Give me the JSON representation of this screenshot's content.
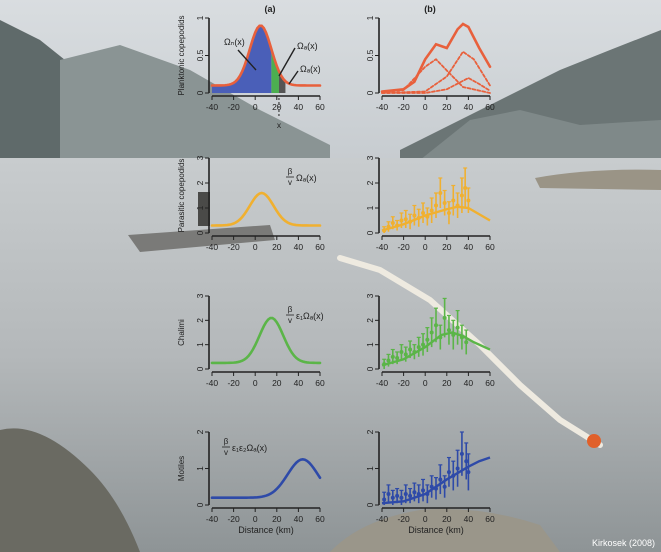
{
  "panel_labels": [
    "(a)",
    "(b)"
  ],
  "credit": "Kirkosek (2008)",
  "colors": {
    "red": "#e8603c",
    "yellow": "#f0b030",
    "green": "#5bb548",
    "blue": "#2e4aa8",
    "shade_blue": "#4a5fb8",
    "shade_green": "#4caf50",
    "shade_gray": "#555555"
  },
  "background": "photo of a fjord with a small boat, floating sea-lice sampling line and buoy; rendered as a painted backdrop",
  "chart_data": [
    {
      "id": "a-planktonic",
      "type": "area",
      "ylabel": "Planktonic copepodids",
      "xlim": [
        -40,
        60
      ],
      "ylim": [
        0,
        1.0
      ],
      "xticks": [
        -40,
        -20,
        0,
        20,
        40,
        60
      ],
      "yticks": [
        0,
        0.5,
        1.0
      ],
      "yticklabels": [
        "0",
        "0.5",
        "1"
      ],
      "color": "#e8603c",
      "series": [
        {
          "kind": "gaussian",
          "baseline": 0.1,
          "amp": 0.8,
          "mu": 5,
          "sigma": 10
        }
      ],
      "shaded_regions": [
        {
          "label": "Ωₙ(x)",
          "from": -40,
          "to": 15,
          "color": "#4a5fb8"
        },
        {
          "label": "Ωₐ(x)",
          "from": 15,
          "to": 22,
          "color": "#4caf50"
        },
        {
          "label": "Ωₐ(x)",
          "from": 22,
          "to": 28,
          "color": "#555555"
        }
      ],
      "annotations": [
        "Ωₙ(x)",
        "Ωₐ(x)",
        "Ωₐ(x)",
        "x"
      ]
    },
    {
      "id": "b-planktonic",
      "type": "line",
      "ylabel": "",
      "xlim": [
        -40,
        60
      ],
      "ylim": [
        0,
        1.0
      ],
      "xticks": [
        -40,
        -20,
        0,
        20,
        40,
        60
      ],
      "yticks": [
        0,
        0.5,
        1.0
      ],
      "yticklabels": [
        "0",
        "0.5",
        "1"
      ],
      "color": "#e8603c",
      "series": [
        {
          "name": "",
          "style": "solid",
          "points": [
            [
              -40,
              0.02
            ],
            [
              -20,
              0.05
            ],
            [
              -10,
              0.15
            ],
            [
              0,
              0.45
            ],
            [
              10,
              0.65
            ],
            [
              20,
              0.6
            ],
            [
              30,
              0.85
            ],
            [
              35,
              0.92
            ],
            [
              40,
              0.88
            ],
            [
              50,
              0.6
            ],
            [
              60,
              0.35
            ]
          ]
        },
        {
          "name": "",
          "style": "dashed",
          "points": [
            [
              -40,
              0.01
            ],
            [
              -20,
              0.04
            ],
            [
              0,
              0.35
            ],
            [
              10,
              0.45
            ],
            [
              20,
              0.3
            ],
            [
              35,
              0.08
            ],
            [
              60,
              0.0
            ]
          ]
        },
        {
          "name": "",
          "style": "dashed",
          "points": [
            [
              -40,
              0.0
            ],
            [
              0,
              0.02
            ],
            [
              20,
              0.22
            ],
            [
              35,
              0.55
            ],
            [
              45,
              0.45
            ],
            [
              60,
              0.1
            ]
          ]
        },
        {
          "name": "",
          "style": "dashed",
          "points": [
            [
              -40,
              0.0
            ],
            [
              0,
              0.0
            ],
            [
              20,
              0.05
            ],
            [
              40,
              0.2
            ],
            [
              50,
              0.12
            ],
            [
              60,
              0.03
            ]
          ]
        }
      ]
    },
    {
      "id": "a-parasitic",
      "type": "line",
      "ylabel": "Parasitic copepodids",
      "xlim": [
        -40,
        60
      ],
      "ylim": [
        0,
        3
      ],
      "xticks": [
        -40,
        -20,
        0,
        20,
        40,
        60
      ],
      "yticks": [
        0,
        1,
        2,
        3
      ],
      "yticklabels": [
        "0",
        "1",
        "2",
        "3"
      ],
      "color": "#f0b030",
      "series": [
        {
          "kind": "gaussian",
          "baseline": 0.3,
          "amp": 1.3,
          "mu": 6,
          "sigma": 11
        }
      ],
      "label_fraction": {
        "numer": "β",
        "denom": "v",
        "tail": "Ωₐ(x)"
      }
    },
    {
      "id": "b-parasitic",
      "type": "scatter",
      "ylabel": "",
      "xlim": [
        -40,
        60
      ],
      "ylim": [
        0,
        3
      ],
      "xticks": [
        -40,
        -20,
        0,
        20,
        40,
        60
      ],
      "yticks": [
        0,
        1,
        2,
        3
      ],
      "yticklabels": [
        "0",
        "1",
        "2",
        "3"
      ],
      "color": "#f0b030",
      "fit": [
        [
          -40,
          0.1
        ],
        [
          -20,
          0.35
        ],
        [
          0,
          0.7
        ],
        [
          20,
          0.95
        ],
        [
          30,
          1.05
        ],
        [
          40,
          1.0
        ],
        [
          50,
          0.75
        ],
        [
          60,
          0.5
        ]
      ],
      "points": [
        [
          -38,
          0.1,
          0.15
        ],
        [
          -34,
          0.25,
          0.2
        ],
        [
          -30,
          0.4,
          0.25
        ],
        [
          -26,
          0.3,
          0.2
        ],
        [
          -22,
          0.5,
          0.3
        ],
        [
          -18,
          0.55,
          0.35
        ],
        [
          -14,
          0.45,
          0.3
        ],
        [
          -10,
          0.7,
          0.4
        ],
        [
          -6,
          0.6,
          0.35
        ],
        [
          -2,
          0.8,
          0.4
        ],
        [
          2,
          0.65,
          0.35
        ],
        [
          6,
          0.9,
          0.5
        ],
        [
          10,
          1.1,
          0.5
        ],
        [
          14,
          1.6,
          0.6
        ],
        [
          18,
          1.2,
          0.5
        ],
        [
          22,
          0.8,
          0.45
        ],
        [
          26,
          1.3,
          0.6
        ],
        [
          30,
          1.1,
          0.5
        ],
        [
          34,
          1.5,
          0.7
        ],
        [
          37,
          1.8,
          0.8
        ],
        [
          40,
          1.3,
          0.5
        ]
      ]
    },
    {
      "id": "a-chalimi",
      "type": "line",
      "ylabel": "Chalimi",
      "xlim": [
        -40,
        60
      ],
      "ylim": [
        0,
        3
      ],
      "xticks": [
        -40,
        -20,
        0,
        20,
        40,
        60
      ],
      "yticks": [
        0,
        1,
        2,
        3
      ],
      "yticklabels": [
        "0",
        "1",
        "2",
        "3"
      ],
      "color": "#5bb548",
      "series": [
        {
          "kind": "gaussian",
          "baseline": 0.25,
          "amp": 1.85,
          "mu": 15,
          "sigma": 11
        }
      ],
      "label_fraction": {
        "numer": "β",
        "denom": "v",
        "tail": "ε₁Ωₐ(x)"
      }
    },
    {
      "id": "b-chalimi",
      "type": "scatter",
      "ylabel": "",
      "xlim": [
        -40,
        60
      ],
      "ylim": [
        0,
        3
      ],
      "xticks": [
        -40,
        -20,
        0,
        20,
        40,
        60
      ],
      "yticks": [
        0,
        1,
        2,
        3
      ],
      "yticklabels": [
        "0",
        "1",
        "2",
        "3"
      ],
      "color": "#5bb548",
      "fit": [
        [
          -40,
          0.15
        ],
        [
          -20,
          0.4
        ],
        [
          0,
          0.9
        ],
        [
          15,
          1.4
        ],
        [
          25,
          1.5
        ],
        [
          35,
          1.35
        ],
        [
          45,
          1.1
        ],
        [
          60,
          0.8
        ]
      ],
      "points": [
        [
          -38,
          0.2,
          0.2
        ],
        [
          -34,
          0.35,
          0.25
        ],
        [
          -30,
          0.5,
          0.3
        ],
        [
          -26,
          0.45,
          0.25
        ],
        [
          -22,
          0.7,
          0.3
        ],
        [
          -18,
          0.6,
          0.3
        ],
        [
          -14,
          0.8,
          0.35
        ],
        [
          -10,
          0.7,
          0.3
        ],
        [
          -6,
          0.9,
          0.4
        ],
        [
          -2,
          1.0,
          0.45
        ],
        [
          2,
          1.2,
          0.5
        ],
        [
          6,
          1.5,
          0.6
        ],
        [
          10,
          1.8,
          0.7
        ],
        [
          14,
          1.3,
          0.5
        ],
        [
          18,
          2.1,
          0.8
        ],
        [
          22,
          1.6,
          0.6
        ],
        [
          26,
          1.4,
          0.6
        ],
        [
          30,
          1.7,
          0.7
        ],
        [
          34,
          1.3,
          0.5
        ],
        [
          38,
          1.1,
          0.5
        ]
      ]
    },
    {
      "id": "a-motiles",
      "type": "line",
      "ylabel": "Motiles",
      "xlabel": "Distance (km)",
      "xlim": [
        -40,
        60
      ],
      "ylim": [
        0,
        2
      ],
      "xticks": [
        -40,
        -20,
        0,
        20,
        40,
        60
      ],
      "yticks": [
        0,
        1,
        2
      ],
      "yticklabels": [
        "0",
        "1",
        "2"
      ],
      "color": "#2e4aa8",
      "series": [
        {
          "kind": "gaussian",
          "baseline": 0.2,
          "amp": 1.05,
          "mu": 44,
          "sigma": 14
        }
      ],
      "label_fraction": {
        "numer": "β",
        "denom": "v",
        "tail": "ε₁ε₂Ωₐ(x)"
      }
    },
    {
      "id": "b-motiles",
      "type": "scatter",
      "ylabel": "",
      "xlabel": "Distance (km)",
      "xlim": [
        -40,
        60
      ],
      "ylim": [
        0,
        2
      ],
      "xticks": [
        -40,
        -20,
        0,
        20,
        40,
        60
      ],
      "yticks": [
        0,
        1,
        2
      ],
      "yticklabels": [
        "0",
        "1",
        "2"
      ],
      "color": "#2e4aa8",
      "fit": [
        [
          -40,
          0.05
        ],
        [
          -20,
          0.1
        ],
        [
          0,
          0.3
        ],
        [
          20,
          0.7
        ],
        [
          40,
          1.05
        ],
        [
          50,
          1.2
        ],
        [
          60,
          1.3
        ]
      ],
      "points": [
        [
          -38,
          0.15,
          0.2
        ],
        [
          -34,
          0.3,
          0.25
        ],
        [
          -30,
          0.2,
          0.2
        ],
        [
          -26,
          0.25,
          0.2
        ],
        [
          -22,
          0.2,
          0.2
        ],
        [
          -18,
          0.3,
          0.25
        ],
        [
          -14,
          0.25,
          0.2
        ],
        [
          -10,
          0.35,
          0.25
        ],
        [
          -6,
          0.3,
          0.25
        ],
        [
          -2,
          0.4,
          0.3
        ],
        [
          2,
          0.3,
          0.25
        ],
        [
          6,
          0.5,
          0.3
        ],
        [
          10,
          0.45,
          0.3
        ],
        [
          14,
          0.7,
          0.4
        ],
        [
          18,
          0.5,
          0.3
        ],
        [
          22,
          0.9,
          0.4
        ],
        [
          26,
          0.8,
          0.4
        ],
        [
          30,
          1.0,
          0.5
        ],
        [
          34,
          1.4,
          0.6
        ],
        [
          38,
          1.2,
          0.5
        ],
        [
          40,
          0.9,
          0.5
        ]
      ]
    }
  ]
}
